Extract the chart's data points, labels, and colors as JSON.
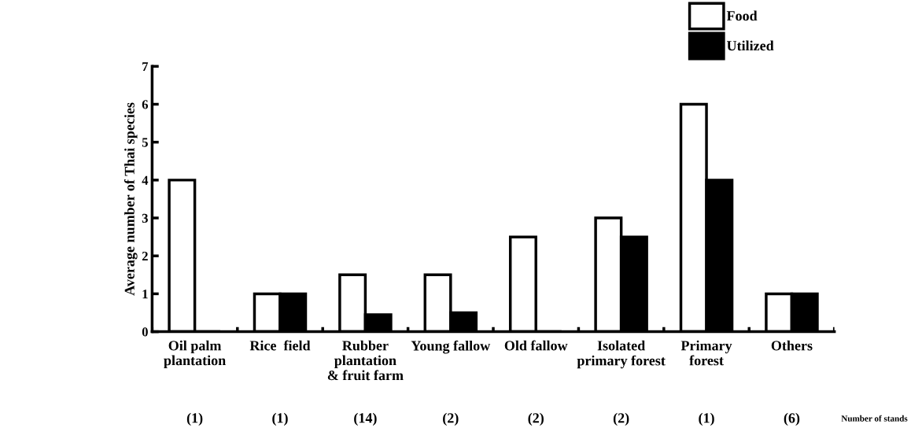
{
  "chart_data": {
    "type": "bar",
    "ylabel": "Average number of Thai species",
    "categories": [
      "Oil palm\nplantation",
      "Rice  field",
      "Rubber\nplantation\n& fruit farm",
      "Young fallow",
      "Old fallow",
      "Isolated\nprimary forest",
      "Primary\nforest",
      "Others"
    ],
    "series": [
      {
        "name": "Food",
        "color": "#ffffff",
        "values": [
          4,
          1,
          1.5,
          1.5,
          2.5,
          3,
          6,
          1
        ]
      },
      {
        "name": "Utilized",
        "color": "#000000",
        "values": [
          0,
          1,
          0.45,
          0.5,
          0,
          2.5,
          4,
          1
        ]
      }
    ],
    "ylim": [
      0,
      7
    ],
    "yticks": [
      0,
      1,
      2,
      3,
      4,
      5,
      6,
      7
    ],
    "grid": false,
    "legend": "top right",
    "annotations": [
      "(1)",
      "(1)",
      "(14)",
      "(2)",
      "(2)",
      "(2)",
      "(1)",
      "(6)",
      "Number of stands"
    ]
  }
}
